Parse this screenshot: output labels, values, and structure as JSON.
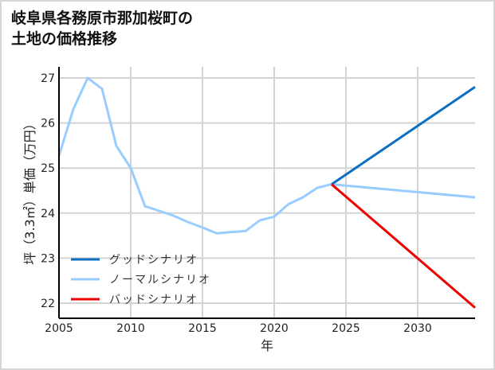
{
  "title_lines": [
    "岐阜県各務原市那加桜町の",
    "土地の価格推移"
  ],
  "colors": {
    "good": "#0a6fc2",
    "normal": "#99ccff",
    "bad": "#ee0000",
    "grid": "#d3d3d3",
    "axis": "#000000",
    "frame": "#d6d6d6"
  },
  "chart_data": {
    "type": "line",
    "title": "岐阜県各務原市那加桜町の土地の価格推移",
    "xlabel": "年",
    "ylabel": "坪（3.3㎡）単価（万円）",
    "xlim": [
      2005,
      2034
    ],
    "ylim": [
      21.7,
      27.3
    ],
    "x_ticks": [
      2005,
      2010,
      2015,
      2020,
      2025,
      2030
    ],
    "y_ticks": [
      22,
      23,
      24,
      25,
      26,
      27
    ],
    "grid": true,
    "legend_position": "lower left",
    "series": [
      {
        "name": "グッドシナリオ",
        "color": "#0a6fc2",
        "x": [
          2024,
          2034
        ],
        "values": [
          24.64,
          26.8
        ]
      },
      {
        "name": "ノーマルシナリオ",
        "color": "#99ccff",
        "x": [
          2005,
          2006,
          2007,
          2008,
          2009,
          2010,
          2011,
          2012,
          2013,
          2014,
          2015,
          2016,
          2017,
          2018,
          2019,
          2020,
          2021,
          2022,
          2023,
          2024,
          2034
        ],
        "values": [
          25.27,
          26.31,
          27.0,
          26.76,
          25.49,
          25.0,
          24.15,
          24.05,
          23.94,
          23.8,
          23.68,
          23.55,
          23.58,
          23.6,
          23.84,
          23.92,
          24.2,
          24.35,
          24.56,
          24.64,
          24.35
        ]
      },
      {
        "name": "バッドシナリオ",
        "color": "#ee0000",
        "x": [
          2024,
          2034
        ],
        "values": [
          24.64,
          21.9
        ]
      }
    ]
  }
}
